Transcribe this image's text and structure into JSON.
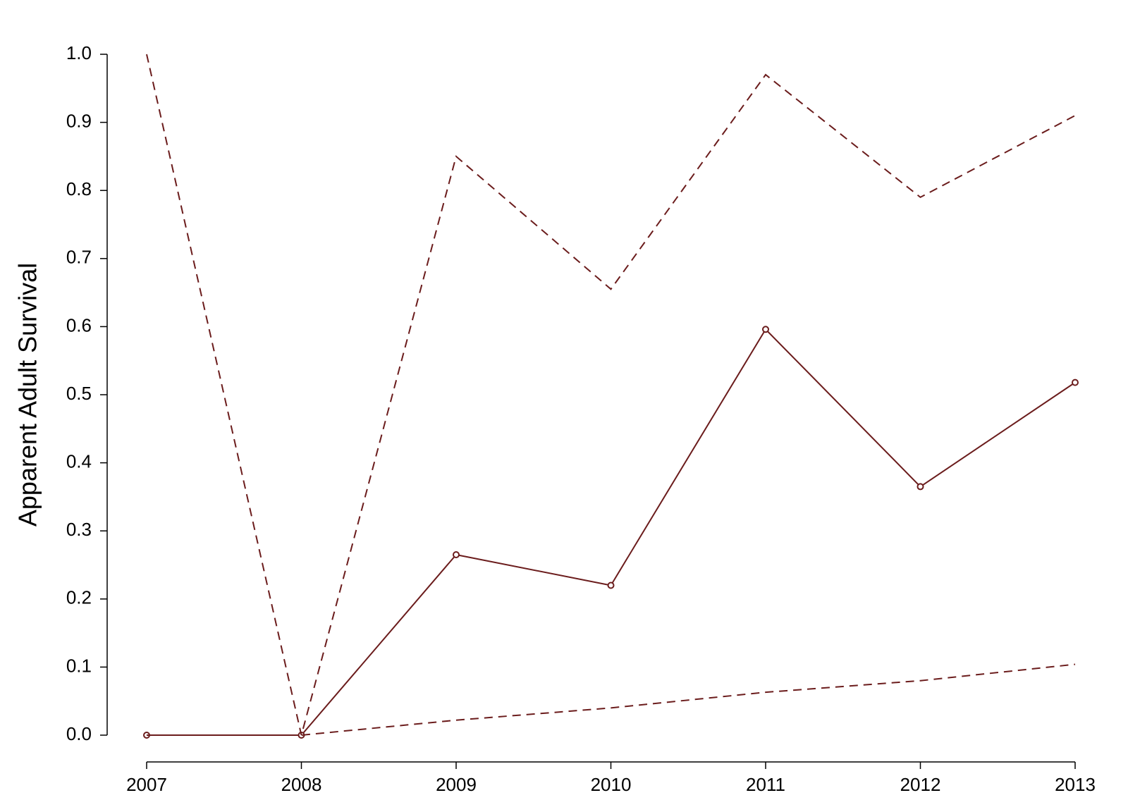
{
  "chart_data": {
    "type": "line",
    "ylabel": "Apparent Adult Survival",
    "x": [
      2007,
      2008,
      2009,
      2010,
      2011,
      2012,
      2013
    ],
    "xlim": [
      2007,
      2013
    ],
    "xticks": [
      2007,
      2008,
      2009,
      2010,
      2011,
      2012,
      2013
    ],
    "ylim": [
      0,
      1
    ],
    "yticks": [
      {
        "value": 0,
        "label": "0.0"
      },
      {
        "value": 0.1,
        "label": "0.1"
      },
      {
        "value": 0.2,
        "label": "0.2"
      },
      {
        "value": 0.3,
        "label": "0.3"
      },
      {
        "value": 0.4,
        "label": "0.4"
      },
      {
        "value": 0.5,
        "label": "0.5"
      },
      {
        "value": 0.6,
        "label": "0.6"
      },
      {
        "value": 0.7,
        "label": "0.7"
      },
      {
        "value": 0.8,
        "label": "0.8"
      },
      {
        "value": 0.9,
        "label": "0.9"
      },
      {
        "value": 1,
        "label": "1.0"
      }
    ],
    "grid": false,
    "series": [
      {
        "color": "#6b1c1c",
        "style": "solid",
        "markers": true,
        "values": [
          0,
          0,
          0.265,
          0.22,
          0.596,
          0.365,
          0.518
        ]
      },
      {
        "color": "#6b1c1c",
        "style": "dashed",
        "markers": false,
        "values": [
          1.0,
          0.0,
          0.85,
          0.655,
          0.97,
          0.79,
          0.91
        ]
      },
      {
        "color": "#6b1c1c",
        "style": "dashed",
        "markers": false,
        "values": [
          0,
          0,
          0.022,
          0.04,
          0.063,
          0.08,
          0.104
        ]
      }
    ]
  }
}
